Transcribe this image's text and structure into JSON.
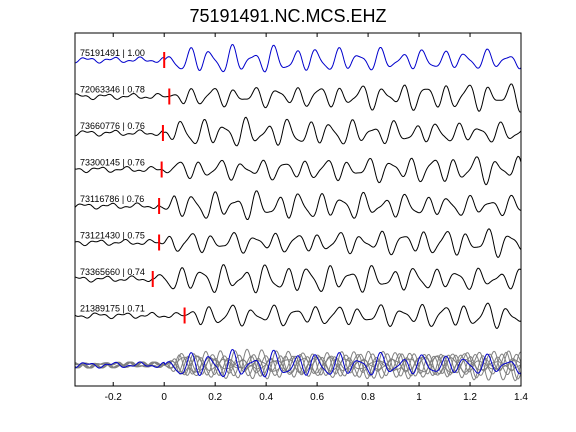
{
  "chart_data": {
    "type": "line",
    "title": "75191491.NC.MCS.EHZ",
    "xlabel": "",
    "ylabel": "",
    "xlim": [
      -0.35,
      1.4
    ],
    "x_ticks": [
      -0.2,
      0,
      0.2,
      0.4,
      0.6,
      0.8,
      1,
      1.2,
      1.4
    ],
    "x_tick_labels": [
      "-0.2",
      "0",
      "0.2",
      "0.4",
      "0.6",
      "0.8",
      "1",
      "1.2",
      "1.4"
    ],
    "grid": false,
    "colors": {
      "reference": "#0000cc",
      "trace": "#000000",
      "overlay": "#808080",
      "pick": "#ff0000"
    },
    "traces": [
      {
        "label": "75191491 | 1.00",
        "pick_time": 0.0,
        "color": "#0000cc"
      },
      {
        "label": "72063346 | 0.78",
        "pick_time": 0.02,
        "color": "#000000"
      },
      {
        "label": "73660776 | 0.76",
        "pick_time": -0.005,
        "color": "#000000"
      },
      {
        "label": "73300145 | 0.76",
        "pick_time": -0.01,
        "color": "#000000"
      },
      {
        "label": "73116786 | 0.76",
        "pick_time": -0.02,
        "color": "#000000"
      },
      {
        "label": "73121430 | 0.75",
        "pick_time": -0.02,
        "color": "#000000"
      },
      {
        "label": "73365660 | 0.74",
        "pick_time": -0.045,
        "color": "#000000"
      },
      {
        "label": "21389175 | 0.71",
        "pick_time": 0.08,
        "color": "#000000"
      }
    ],
    "overlay": {
      "label": "",
      "description_count": 8
    }
  }
}
